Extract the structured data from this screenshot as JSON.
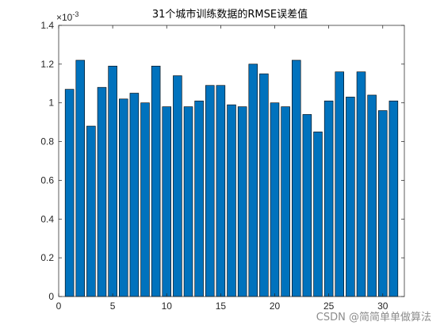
{
  "chart_data": {
    "type": "bar",
    "title": "31个城市训练数据的RMSE误差值",
    "xlabel": "",
    "ylabel": "",
    "exponent_base": "×10",
    "exponent_power": "-3",
    "x": [
      1,
      2,
      3,
      4,
      5,
      6,
      7,
      8,
      9,
      10,
      11,
      12,
      13,
      14,
      15,
      16,
      17,
      18,
      19,
      20,
      21,
      22,
      23,
      24,
      25,
      26,
      27,
      28,
      29,
      30,
      31
    ],
    "values": [
      1.07,
      1.22,
      0.88,
      1.08,
      1.19,
      1.02,
      1.05,
      1.0,
      1.19,
      0.98,
      1.14,
      0.98,
      1.01,
      1.09,
      1.09,
      0.99,
      0.98,
      1.2,
      1.15,
      1.0,
      0.98,
      1.22,
      0.94,
      0.85,
      1.01,
      1.16,
      1.03,
      1.16,
      1.04,
      0.96,
      1.01
    ],
    "xlim": [
      0,
      32
    ],
    "ylim": [
      0,
      1.4
    ],
    "xticks": [
      0,
      5,
      10,
      15,
      20,
      25,
      30
    ],
    "yticks": [
      0,
      0.2,
      0.4,
      0.6,
      0.8,
      1,
      1.2,
      1.4
    ],
    "grid": false,
    "bar_color": "#0072BD",
    "edge_color": "#000000"
  },
  "watermark": "CSDN @简简单单做算法"
}
